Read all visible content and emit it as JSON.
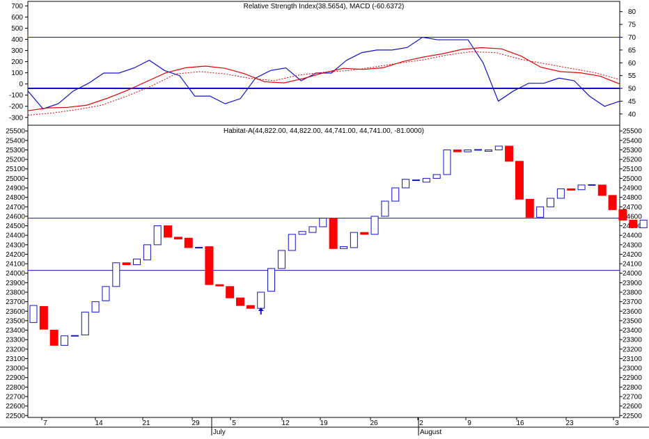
{
  "chart_data": [
    {
      "panel": "indicator",
      "type": "line",
      "title": "Relative Strength Index(38.5654), MACD (-60.6372)",
      "left_axis_ticks": [
        -300,
        -200,
        -100,
        0,
        100,
        200,
        300,
        400,
        500,
        600,
        700
      ],
      "left_ylim": [
        -370,
        740
      ],
      "right_axis_ticks": [
        40,
        45,
        50,
        55,
        60,
        65,
        70,
        75,
        80
      ],
      "right_ylim": [
        35.6,
        84
      ],
      "hlines_right": [
        70,
        50
      ],
      "series": [
        {
          "name": "RSI",
          "axis": "right",
          "color": "#1010cc",
          "values": [
            49,
            42,
            44,
            49,
            52,
            56,
            56,
            58,
            61,
            57,
            55,
            47,
            47,
            44,
            46,
            54,
            57,
            58,
            53,
            56,
            56,
            61,
            64,
            65,
            65,
            66,
            70,
            69,
            69,
            69,
            60,
            45,
            49,
            52,
            52,
            54,
            53,
            47,
            43,
            45
          ]
        },
        {
          "name": "MACD",
          "axis": "left",
          "color": "#dd0000",
          "values": [
            -240,
            -215,
            -210,
            -190,
            -130,
            -60,
            20,
            100,
            145,
            160,
            140,
            90,
            20,
            10,
            50,
            100,
            140,
            130,
            145,
            200,
            240,
            270,
            310,
            325,
            315,
            250,
            150,
            110,
            100,
            70,
            0
          ]
        },
        {
          "name": "Signal",
          "axis": "left",
          "color": "#dd0000",
          "dashed": true,
          "values": [
            -280,
            -260,
            -230,
            -190,
            -110,
            -20,
            90,
            110,
            90,
            50,
            30,
            80,
            105,
            120,
            150,
            185,
            215,
            260,
            290,
            280,
            220,
            180,
            140,
            100,
            40
          ]
        }
      ]
    },
    {
      "panel": "price",
      "type": "candlestick",
      "title": "Habitat-A(44,822.00, 44,822.00, 44,741.00, 44,741.00, -81.0000)",
      "axis_ticks": [
        25500,
        25400,
        25300,
        25200,
        25100,
        25000,
        24900,
        24800,
        24700,
        24600,
        24500,
        24400,
        24300,
        24200,
        24100,
        24000,
        23900,
        23800,
        23700,
        23600,
        23500,
        23400,
        23300,
        23200,
        23100,
        23000,
        22900,
        22800,
        22700,
        22600,
        22500
      ],
      "ylim": [
        22480,
        25560
      ],
      "hlines": [
        24580,
        24030
      ],
      "candles": [
        {
          "o": 23480,
          "c": 23660
        },
        {
          "o": 23650,
          "c": 23410
        },
        {
          "o": 23400,
          "c": 23240
        },
        {
          "o": 23240,
          "c": 23340
        },
        {
          "o": 23340,
          "c": 23340
        },
        {
          "o": 23350,
          "c": 23590
        },
        {
          "o": 23590,
          "c": 23700
        },
        {
          "o": 23710,
          "c": 23860
        },
        {
          "o": 23860,
          "c": 24110
        },
        {
          "o": 24110,
          "c": 24090
        },
        {
          "o": 24090,
          "c": 24150
        },
        {
          "o": 24140,
          "c": 24300
        },
        {
          "o": 24300,
          "c": 24500
        },
        {
          "o": 24500,
          "c": 24380
        },
        {
          "o": 24380,
          "c": 24360
        },
        {
          "o": 24370,
          "c": 24270
        },
        {
          "o": 24270,
          "c": 24270
        },
        {
          "o": 24280,
          "c": 23880
        },
        {
          "o": 23880,
          "c": 23870
        },
        {
          "o": 23860,
          "c": 23740
        },
        {
          "o": 23740,
          "c": 23660
        },
        {
          "o": 23660,
          "c": 23630
        },
        {
          "o": 23630,
          "c": 23800
        },
        {
          "o": 23810,
          "c": 24050
        },
        {
          "o": 24050,
          "c": 24240
        },
        {
          "o": 24240,
          "c": 24410
        },
        {
          "o": 24410,
          "c": 24440
        },
        {
          "o": 24430,
          "c": 24490
        },
        {
          "o": 24490,
          "c": 24580
        },
        {
          "o": 24580,
          "c": 24260
        },
        {
          "o": 24260,
          "c": 24280
        },
        {
          "o": 24270,
          "c": 24430
        },
        {
          "o": 24430,
          "c": 24410
        },
        {
          "o": 24410,
          "c": 24600
        },
        {
          "o": 24600,
          "c": 24760
        },
        {
          "o": 24760,
          "c": 24900
        },
        {
          "o": 24900,
          "c": 24990
        },
        {
          "o": 24980,
          "c": 24980
        },
        {
          "o": 24960,
          "c": 25000
        },
        {
          "o": 25000,
          "c": 25040
        },
        {
          "o": 25040,
          "c": 25300
        },
        {
          "o": 25300,
          "c": 25280
        },
        {
          "o": 25280,
          "c": 25300
        },
        {
          "o": 25300,
          "c": 25300
        },
        {
          "o": 25290,
          "c": 25300
        },
        {
          "o": 25300,
          "c": 25340
        },
        {
          "o": 25340,
          "c": 25180
        },
        {
          "o": 25180,
          "c": 24780
        },
        {
          "o": 24780,
          "c": 24590
        },
        {
          "o": 24590,
          "c": 24700
        },
        {
          "o": 24700,
          "c": 24790
        },
        {
          "o": 24790,
          "c": 24890
        },
        {
          "o": 24890,
          "c": 24880
        },
        {
          "o": 24880,
          "c": 24930
        },
        {
          "o": 24930,
          "c": 24930
        },
        {
          "o": 24930,
          "c": 24820
        },
        {
          "o": 24820,
          "c": 24670
        },
        {
          "o": 24670,
          "c": 24560
        },
        {
          "o": 24560,
          "c": 24480
        },
        {
          "o": 24480,
          "c": 24560
        }
      ],
      "arrow_index": 22
    }
  ],
  "x_axis": {
    "day_labels": [
      "7",
      "14",
      "21",
      "29",
      "5",
      "12",
      "19",
      "26",
      "2",
      "9",
      "16",
      "23",
      "3"
    ],
    "month_labels": [
      "July",
      "August"
    ]
  }
}
